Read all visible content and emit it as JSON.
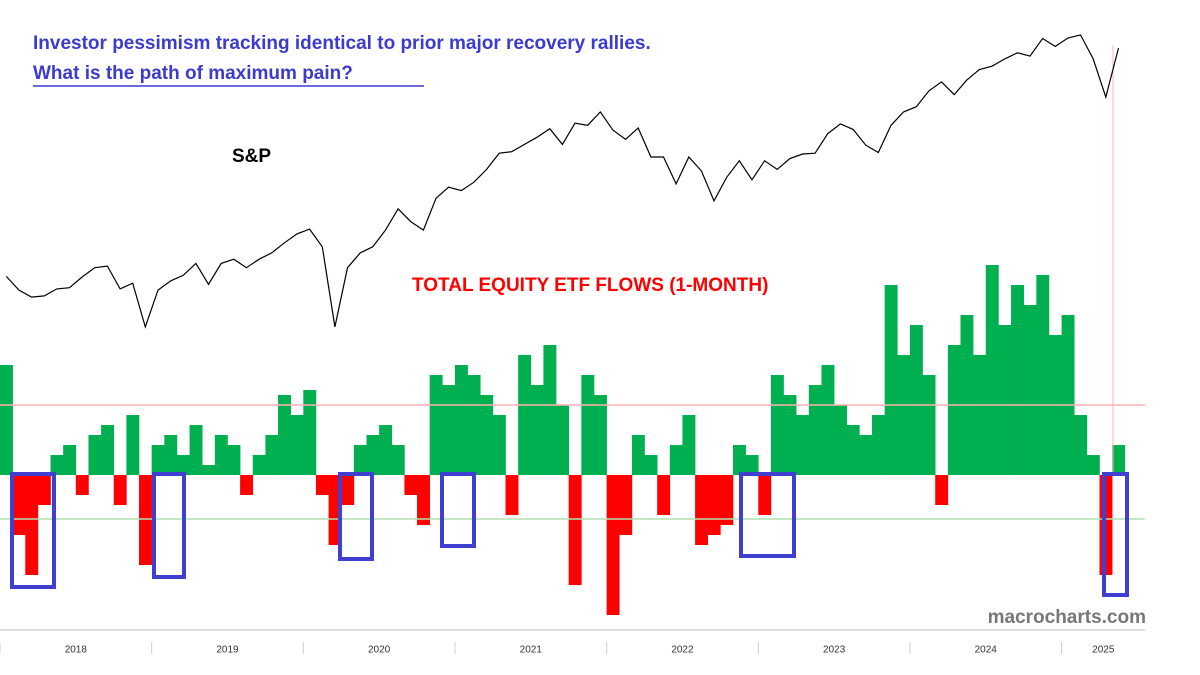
{
  "chart_data": {
    "type": "line-bar",
    "title": "Investor pessimism tracking identical to prior major recovery rallies.",
    "subtitle": "What is the path of maximum pain?",
    "line_label": "S&P",
    "bar_label": "TOTAL EQUITY ETF FLOWS (1-MONTH)",
    "source": "macrocharts.com",
    "xlim": [
      2018,
      2025.55
    ],
    "xticks": [
      2018,
      2019,
      2020,
      2021,
      2022,
      2023,
      2024,
      2025
    ],
    "line_series": {
      "name": "S&P",
      "color": "#000000",
      "log_scale": true,
      "ylim": [
        1800,
        6500
      ],
      "values": [
        2820,
        2700,
        2640,
        2650,
        2710,
        2720,
        2815,
        2900,
        2915,
        2710,
        2760,
        2400,
        2700,
        2780,
        2830,
        2940,
        2750,
        2940,
        2980,
        2900,
        2980,
        3040,
        3140,
        3230,
        3280,
        3100,
        2400,
        2900,
        3040,
        3100,
        3270,
        3500,
        3360,
        3270,
        3620,
        3750,
        3710,
        3810,
        3970,
        4180,
        4200,
        4300,
        4400,
        4520,
        4300,
        4600,
        4570,
        4770,
        4500,
        4370,
        4530,
        4130,
        4130,
        3790,
        4130,
        3950,
        3590,
        3870,
        4080,
        3840,
        4080,
        3970,
        4110,
        4170,
        4180,
        4450,
        4590,
        4510,
        4290,
        4190,
        4570,
        4770,
        4850,
        5100,
        5250,
        5040,
        5280,
        5460,
        5520,
        5650,
        5760,
        5700,
        6030,
        5880,
        6040,
        6100,
        5650,
        5000,
        5850
      ]
    },
    "bar_series": {
      "name": "TOTAL EQUITY ETF FLOWS (1-MONTH)",
      "positive_color": "#00b050",
      "negative_color": "#ff0000",
      "ylim": [
        -145,
        255
      ],
      "values": [
        110,
        -60,
        -100,
        -30,
        20,
        30,
        -20,
        40,
        50,
        -30,
        60,
        -90,
        30,
        40,
        20,
        50,
        10,
        40,
        30,
        -20,
        20,
        40,
        80,
        60,
        85,
        -20,
        -70,
        -30,
        30,
        40,
        50,
        30,
        -20,
        -50,
        100,
        90,
        110,
        100,
        80,
        60,
        -40,
        120,
        90,
        130,
        70,
        -110,
        100,
        80,
        -140,
        -60,
        40,
        20,
        -40,
        30,
        60,
        -70,
        -60,
        -50,
        30,
        20,
        -40,
        100,
        80,
        60,
        90,
        110,
        70,
        50,
        40,
        60,
        190,
        120,
        150,
        100,
        -30,
        130,
        160,
        120,
        210,
        150,
        190,
        170,
        200,
        140,
        160,
        60,
        20,
        -100,
        30
      ]
    },
    "reference_lines": [
      {
        "value": 70,
        "color": "#ffb0b0"
      },
      {
        "value": -44,
        "color": "#b0e0b0"
      }
    ]
  }
}
